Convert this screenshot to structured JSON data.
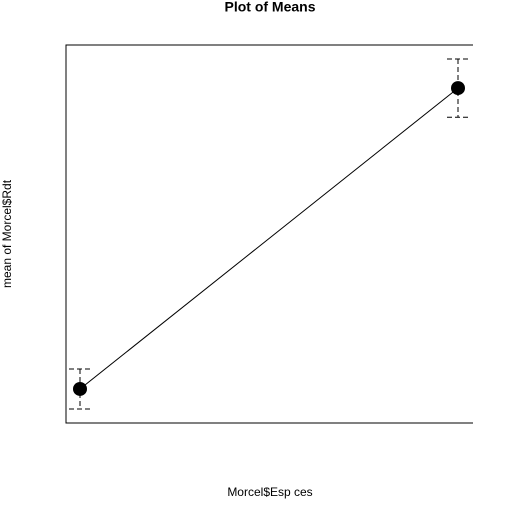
{
  "chart_data": {
    "type": "line",
    "title": "Plot of Means",
    "x_label": "Morcel$Esp ces",
    "y_label": "mean of Morcel$Rdt",
    "categories": [
      null,
      null
    ],
    "values": [
      9.0,
      88.6
    ],
    "errors": [
      5.3,
      7.7
    ],
    "color": "#000000",
    "ylim": [
      0,
      100
    ]
  }
}
